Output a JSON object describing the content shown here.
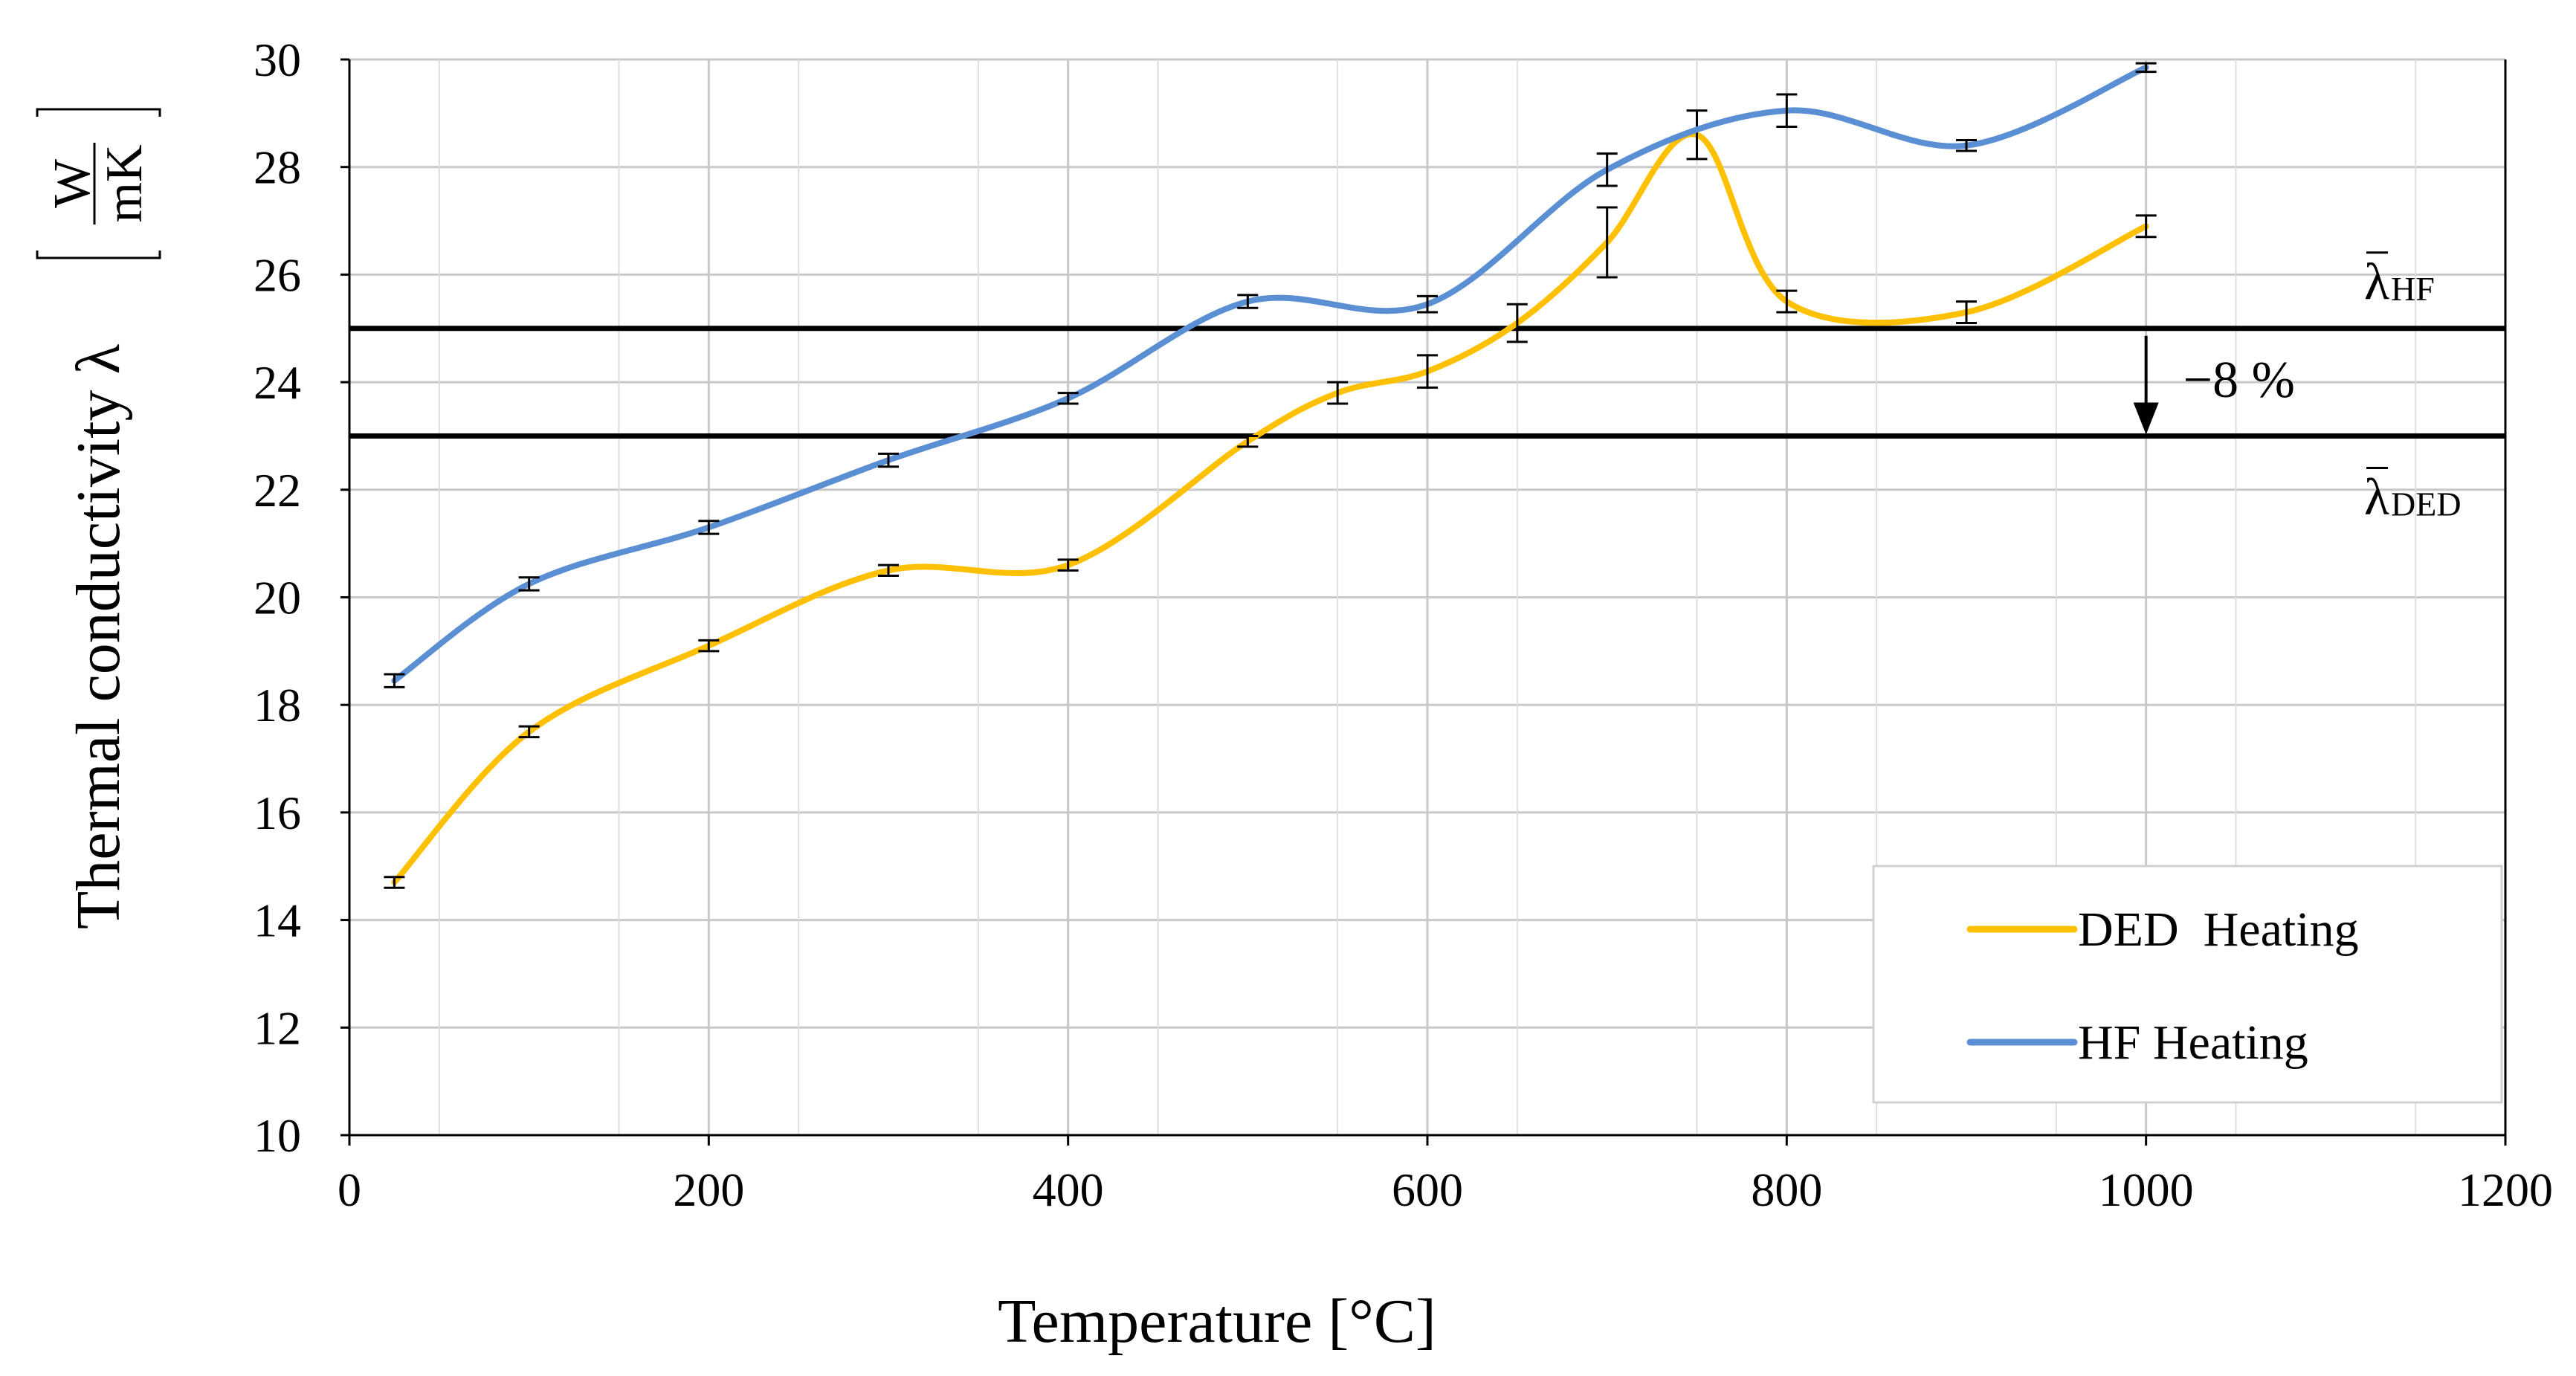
{
  "chart_data": {
    "type": "line",
    "title": "",
    "xlabel": "Temperature [°C]",
    "ylabel": "Thermal conductivity λ",
    "ylabel_unit": {
      "numerator": "W",
      "denominator": "mK"
    },
    "xlim": [
      0,
      1200
    ],
    "ylim": [
      10,
      30
    ],
    "xticks": [
      0,
      200,
      400,
      600,
      800,
      1000,
      1200
    ],
    "yticks": [
      10,
      12,
      14,
      16,
      18,
      20,
      22,
      24,
      26,
      28,
      30
    ],
    "grid": true,
    "legend_position": "bottom-right",
    "series": [
      {
        "name": "DED  Heating",
        "color": "#FFC000",
        "x": [
          25,
          100,
          200,
          300,
          400,
          500,
          550,
          600,
          650,
          700,
          750,
          800,
          900,
          1000
        ],
        "y": [
          14.7,
          17.5,
          19.1,
          20.5,
          20.6,
          22.9,
          23.8,
          24.2,
          25.1,
          26.6,
          28.6,
          25.5,
          25.3,
          26.9
        ],
        "err": [
          0.1,
          0.1,
          0.1,
          0.1,
          0.1,
          0.1,
          0.2,
          0.3,
          0.35,
          0.65,
          0.45,
          0.2,
          0.2,
          0.2
        ]
      },
      {
        "name": "HF Heating",
        "color": "#5B8FD4",
        "x": [
          25,
          100,
          200,
          300,
          400,
          500,
          600,
          700,
          800,
          900,
          1000
        ],
        "y": [
          18.45,
          20.25,
          21.3,
          22.55,
          23.7,
          25.5,
          25.45,
          27.95,
          29.05,
          28.4,
          29.85
        ],
        "err": [
          0.12,
          0.12,
          0.12,
          0.12,
          0.1,
          0.12,
          0.15,
          0.3,
          0.3,
          0.1,
          0.08
        ]
      }
    ],
    "reference_lines": [
      {
        "name": "mean-hf",
        "y": 25.0,
        "label_symbol": "λ",
        "label_sub": "HF"
      },
      {
        "name": "mean-ded",
        "y": 23.0,
        "label_symbol": "λ",
        "label_sub": "DED"
      }
    ],
    "annotation": {
      "text": "−8 %",
      "x": 1000,
      "from_y": 25.0,
      "to_y": 23.0
    }
  }
}
